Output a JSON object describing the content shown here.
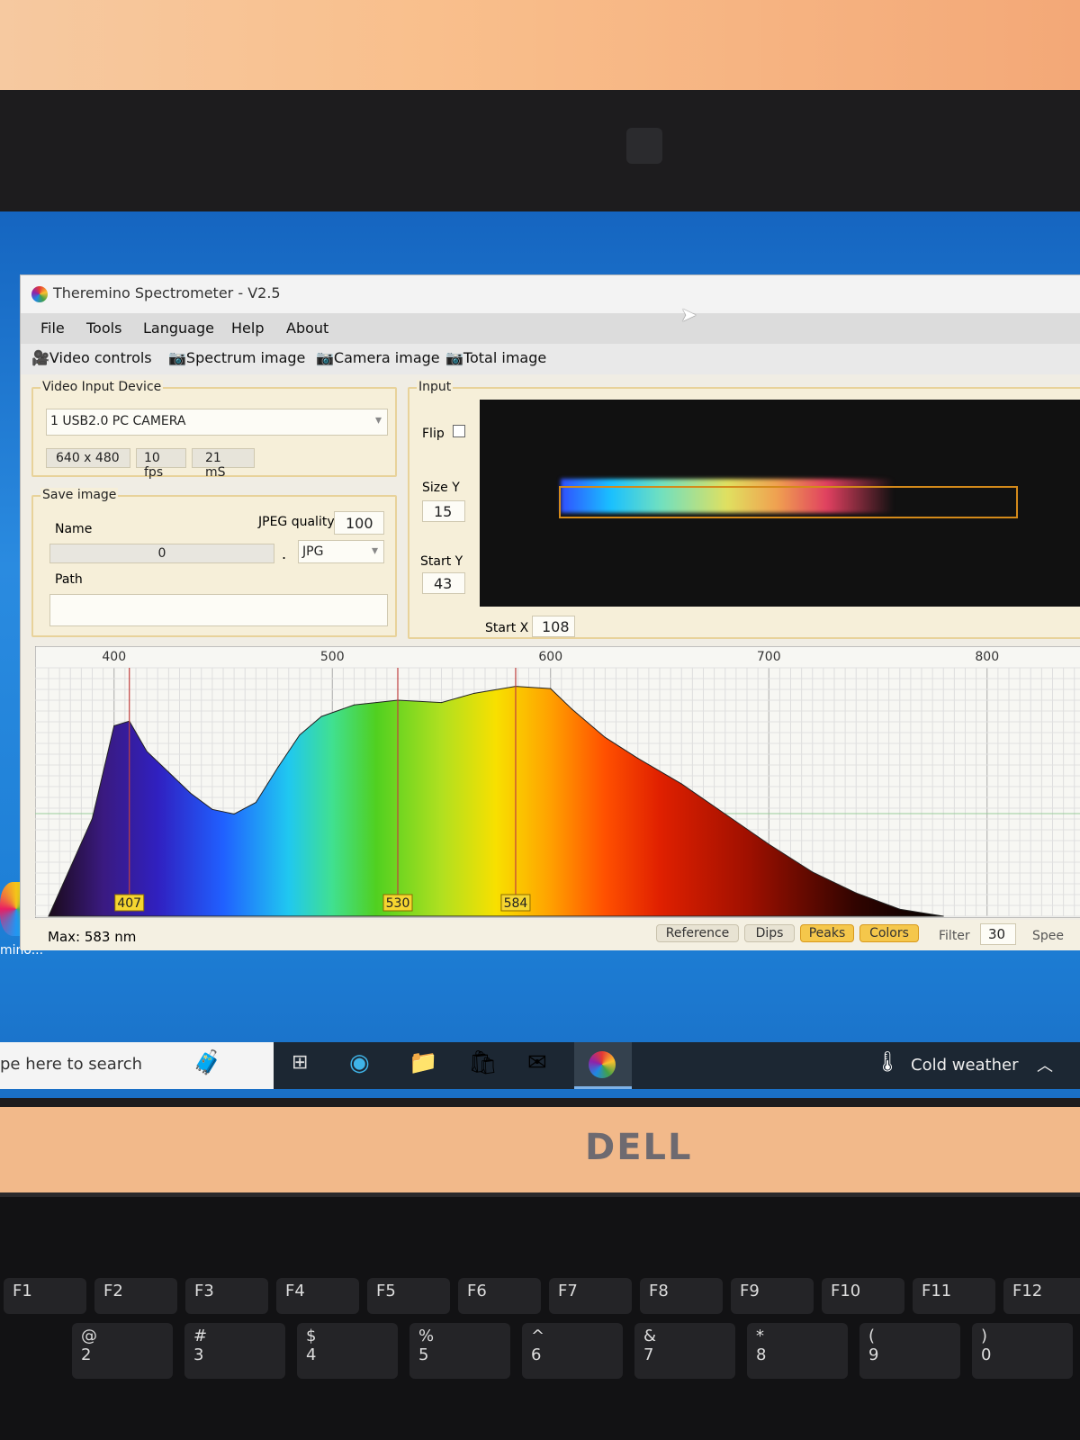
{
  "window": {
    "title": "Theremino Spectrometer - V2.5"
  },
  "menu": [
    "File",
    "Tools",
    "Language",
    "Help",
    "About"
  ],
  "toolbar": [
    "Video controls",
    "Spectrum image",
    "Camera image",
    "Total image"
  ],
  "video_input": {
    "label": "Video Input Device",
    "device": "1 USB2.0 PC CAMERA",
    "resolution": "640 x 480",
    "fps": "10 fps",
    "exposure": "21 mS"
  },
  "save_image": {
    "label": "Save image",
    "name_label": "Name",
    "name_value": "0",
    "jpeg_quality_label": "JPEG quality",
    "jpeg_quality": "100",
    "dot": ".",
    "format": "JPG",
    "path_label": "Path",
    "path_value": ""
  },
  "input": {
    "label": "Input",
    "flip_label": "Flip",
    "flip_checked": false,
    "size_y_label": "Size Y",
    "size_y": "15",
    "start_y_label": "Start Y",
    "start_y": "43",
    "start_x_label": "Start X",
    "start_x": "108"
  },
  "status": {
    "max": "Max: 583 nm",
    "buttons": [
      {
        "label": "Reference",
        "active": false
      },
      {
        "label": "Dips",
        "active": false
      },
      {
        "label": "Peaks",
        "active": true
      },
      {
        "label": "Colors",
        "active": true
      }
    ],
    "filter_label": "Filter",
    "filter_value": "30",
    "speed_label": "Spee"
  },
  "desktop": {
    "icon_label": "mino..."
  },
  "taskbar": {
    "search_placeholder": "pe here to search",
    "weather": "Cold weather"
  },
  "laptop": {
    "brand": "DELL"
  },
  "keyboard": {
    "fkeys": [
      "F1",
      "F2",
      "F3",
      "F4",
      "F5",
      "F6",
      "F7",
      "F8",
      "F9",
      "F10",
      "F11",
      "F12"
    ],
    "numbers": [
      "2",
      "3",
      "4",
      "5",
      "6",
      "7",
      "8",
      "9",
      "0"
    ],
    "symbols": [
      "@",
      "#",
      "$",
      "%",
      "^",
      "&",
      "*",
      "(",
      ")"
    ]
  },
  "chart_data": {
    "type": "area",
    "x_ticks": [
      400,
      500,
      600,
      700,
      800
    ],
    "xlim": [
      370,
      850
    ],
    "ylim": [
      0,
      100
    ],
    "grid": true,
    "x": [
      370,
      390,
      400,
      407,
      415,
      425,
      435,
      445,
      455,
      465,
      475,
      485,
      495,
      510,
      530,
      550,
      565,
      584,
      600,
      610,
      625,
      640,
      660,
      680,
      700,
      720,
      740,
      760,
      780
    ],
    "y": [
      0,
      42,
      82,
      84,
      71,
      62,
      53,
      46,
      44,
      49,
      64,
      78,
      86,
      91,
      93,
      92,
      96,
      99,
      98,
      89,
      77,
      68,
      57,
      44,
      31,
      19,
      10,
      3,
      0
    ],
    "peaks": [
      407,
      530,
      584
    ],
    "fill": "spectral colors"
  }
}
